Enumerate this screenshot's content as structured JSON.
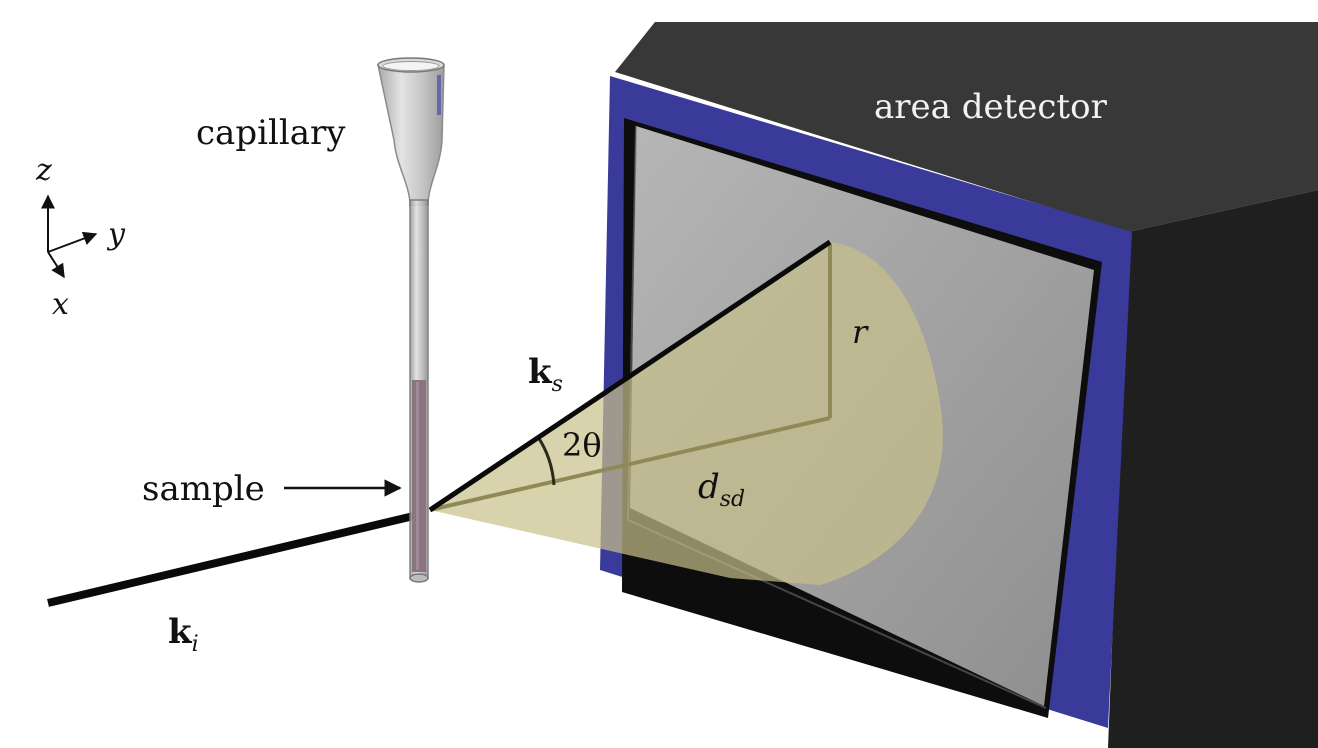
{
  "labels": {
    "capillary": "capillary",
    "area_detector": "area detector",
    "sample": "sample",
    "axis_z": "z",
    "axis_y": "y",
    "axis_x": "x",
    "k_s_base": "k",
    "k_s_sub": "s",
    "k_i_base": "k",
    "k_i_sub": "i",
    "two_theta": "2θ",
    "r": "r",
    "d_sd_base": "d",
    "d_sd_sub": "sd"
  },
  "colors": {
    "detector_frame": "#3a3a9a",
    "detector_body_top": "#383838",
    "detector_body_side": "#1f1f1f",
    "screen": "#a4a4a4",
    "cone": "#c9c08a",
    "sample": "#8a7480",
    "beam": "#0a0a0a"
  }
}
